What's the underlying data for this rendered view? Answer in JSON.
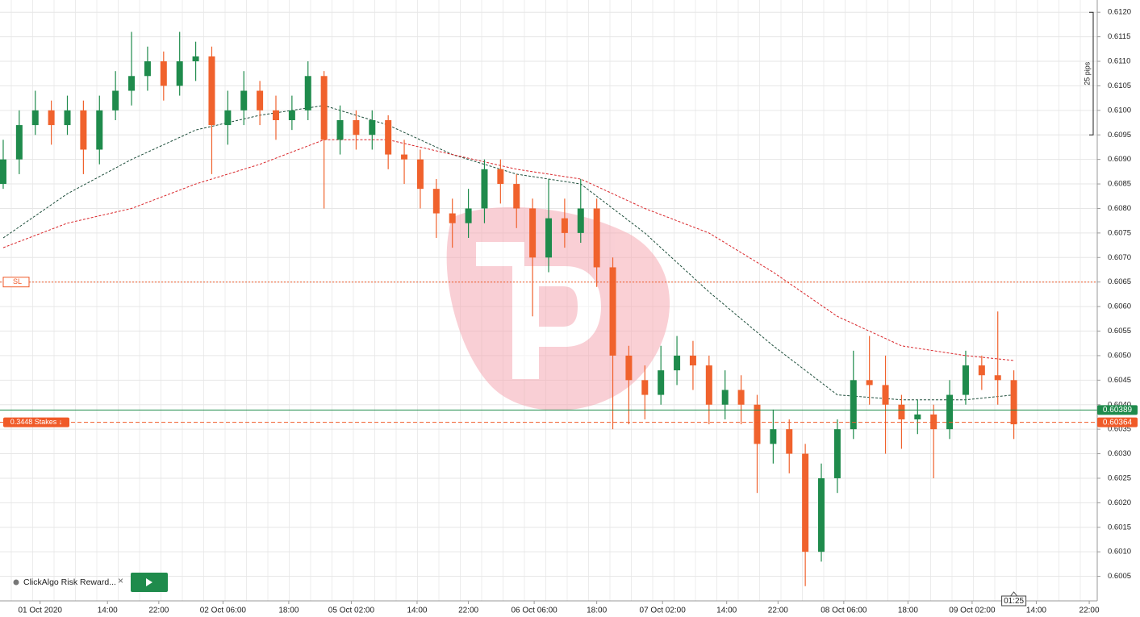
{
  "chart_data": {
    "type": "candlestick",
    "up_color": "#1f8b4c",
    "down_color": "#f0622d",
    "open": [
      0.6085,
      0.609,
      0.6097,
      0.61,
      0.6097,
      0.61,
      0.6092,
      0.61,
      0.6104,
      0.6107,
      0.611,
      0.6105,
      0.611,
      0.6111,
      0.6097,
      0.61,
      0.6104,
      0.61,
      0.6098,
      0.61,
      0.6107,
      0.6094,
      0.6098,
      0.6095,
      0.6098,
      0.6091,
      0.609,
      0.6084,
      0.6079,
      0.6077,
      0.608,
      0.6088,
      0.6085,
      0.608,
      0.607,
      0.6078,
      0.6075,
      0.608,
      0.6068,
      0.605,
      0.6045,
      0.6042,
      0.6047,
      0.605,
      0.6048,
      0.604,
      0.6043,
      0.604,
      0.6032,
      0.6035,
      0.603,
      0.601,
      0.6025,
      0.6035,
      0.6045,
      0.6044,
      0.604,
      0.6037,
      0.6038,
      0.6035,
      0.6042,
      0.6048,
      0.6046,
      0.6045
    ],
    "high": [
      0.6094,
      0.61,
      0.6104,
      0.6102,
      0.6103,
      0.6102,
      0.6103,
      0.6108,
      0.6116,
      0.6113,
      0.6112,
      0.6116,
      0.6114,
      0.6113,
      0.6104,
      0.6108,
      0.6106,
      0.6103,
      0.6103,
      0.611,
      0.6108,
      0.6101,
      0.61,
      0.61,
      0.6099,
      0.6094,
      0.6092,
      0.6086,
      0.6082,
      0.6084,
      0.609,
      0.609,
      0.6087,
      0.6082,
      0.6086,
      0.6082,
      0.6086,
      0.6082,
      0.607,
      0.6052,
      0.6048,
      0.6052,
      0.6054,
      0.6053,
      0.605,
      0.6047,
      0.6046,
      0.6042,
      0.6039,
      0.6037,
      0.6032,
      0.6028,
      0.6037,
      0.6051,
      0.6054,
      0.605,
      0.6042,
      0.6041,
      0.604,
      0.6045,
      0.6051,
      0.605,
      0.6059,
      0.6047
    ],
    "low": [
      0.6084,
      0.6087,
      0.6095,
      0.6093,
      0.6095,
      0.6087,
      0.6089,
      0.6098,
      0.6101,
      0.6104,
      0.6102,
      0.6103,
      0.6106,
      0.6087,
      0.6093,
      0.6097,
      0.6097,
      0.6094,
      0.6096,
      0.6098,
      0.608,
      0.6091,
      0.6092,
      0.6092,
      0.6088,
      0.6085,
      0.608,
      0.6074,
      0.6072,
      0.6074,
      0.6077,
      0.6081,
      0.6076,
      0.6058,
      0.6067,
      0.6072,
      0.6073,
      0.6064,
      0.6035,
      0.6036,
      0.6037,
      0.604,
      0.6044,
      0.6043,
      0.6036,
      0.6037,
      0.6036,
      0.6022,
      0.6028,
      0.6026,
      0.6003,
      0.6008,
      0.6022,
      0.6033,
      0.604,
      0.603,
      0.6031,
      0.6034,
      0.6025,
      0.6033,
      0.604,
      0.6043,
      0.604,
      0.6033
    ],
    "close": [
      0.609,
      0.6097,
      0.61,
      0.6097,
      0.61,
      0.6092,
      0.61,
      0.6104,
      0.6107,
      0.611,
      0.6105,
      0.611,
      0.6111,
      0.6097,
      0.61,
      0.6104,
      0.61,
      0.6098,
      0.61,
      0.6107,
      0.6094,
      0.6098,
      0.6095,
      0.6098,
      0.6091,
      0.609,
      0.6084,
      0.6079,
      0.6077,
      0.608,
      0.6088,
      0.6085,
      0.608,
      0.607,
      0.6078,
      0.6075,
      0.608,
      0.6068,
      0.605,
      0.6045,
      0.6042,
      0.6047,
      0.605,
      0.6048,
      0.604,
      0.6043,
      0.604,
      0.6032,
      0.6035,
      0.603,
      0.601,
      0.6025,
      0.6035,
      0.6045,
      0.6044,
      0.604,
      0.6037,
      0.6038,
      0.6035,
      0.6042,
      0.6048,
      0.6046,
      0.6045,
      0.6036
    ],
    "moving_averages": [
      {
        "color": "#1d4d3a",
        "x": [
          0,
          4,
          8,
          12,
          16,
          20,
          24,
          28,
          32,
          36,
          40,
          44,
          48,
          52,
          56,
          60,
          63
        ],
        "values": [
          0.6074,
          0.6083,
          0.609,
          0.6096,
          0.6099,
          0.6101,
          0.6097,
          0.6091,
          0.6087,
          0.6085,
          0.6075,
          0.6063,
          0.6052,
          0.6042,
          0.6041,
          0.6041,
          0.6042
        ]
      },
      {
        "color": "#d9262a",
        "x": [
          0,
          4,
          8,
          12,
          16,
          20,
          24,
          28,
          32,
          36,
          40,
          44,
          48,
          52,
          56,
          60,
          63
        ],
        "values": [
          0.6072,
          0.6077,
          0.608,
          0.6085,
          0.6089,
          0.6094,
          0.6094,
          0.6091,
          0.6088,
          0.6086,
          0.608,
          0.6075,
          0.6067,
          0.6058,
          0.6052,
          0.605,
          0.6049
        ]
      }
    ],
    "xlim": [
      -0.2,
      68.2
    ],
    "xticks": [
      {
        "value": 2.3,
        "label": "01 Oct 2020"
      },
      {
        "value": 6.5,
        "label": "14:00"
      },
      {
        "value": 9.7,
        "label": "22:00"
      },
      {
        "value": 13.7,
        "label": "02 Oct 06:00"
      },
      {
        "value": 17.8,
        "label": "18:00"
      },
      {
        "value": 21.7,
        "label": "05 Oct 02:00"
      },
      {
        "value": 25.8,
        "label": "14:00"
      },
      {
        "value": 29.0,
        "label": "22:00"
      },
      {
        "value": 33.1,
        "label": "06 Oct 06:00"
      },
      {
        "value": 37.0,
        "label": "18:00"
      },
      {
        "value": 41.1,
        "label": "07 Oct 02:00"
      },
      {
        "value": 45.1,
        "label": "14:00"
      },
      {
        "value": 48.3,
        "label": "22:00"
      },
      {
        "value": 52.4,
        "label": "08 Oct 06:00"
      },
      {
        "value": 56.4,
        "label": "18:00"
      },
      {
        "value": 60.4,
        "label": "09 Oct 02:00"
      },
      {
        "value": 64.4,
        "label": "14:00"
      },
      {
        "value": 67.7,
        "label": "22:00"
      }
    ],
    "ylim": [
      0.6,
      0.61225
    ],
    "yticks": [
      {
        "value": 0.612,
        "label": "0.6120"
      },
      0.6115,
      {
        "value": 0.611,
        "label": "0.6110"
      },
      0.6105,
      {
        "value": 0.61,
        "label": "0.6100"
      },
      0.6095,
      {
        "value": 0.609,
        "label": "0.6090"
      },
      0.6085,
      {
        "value": 0.608,
        "label": "0.6080"
      },
      0.6075,
      {
        "value": 0.607,
        "label": "0.6070"
      },
      0.6065,
      {
        "value": 0.606,
        "label": "0.6060"
      },
      0.6055,
      {
        "value": 0.605,
        "label": "0.6050"
      },
      0.6045,
      {
        "value": 0.604,
        "label": "0.6040"
      },
      0.6035,
      {
        "value": 0.603,
        "label": "0.6030"
      },
      0.6025,
      {
        "value": 0.602,
        "label": "0.6020"
      },
      0.6015,
      {
        "value": 0.601,
        "label": "0.6010"
      },
      0.6005
    ],
    "grid": true,
    "stop_loss": {
      "name": "SL",
      "value": 0.6065,
      "color": "#f05a28"
    },
    "price_lines": [
      {
        "value": 0.60389,
        "color": "#1f8b4c"
      },
      {
        "value": 0.60364,
        "color": "#f05a28",
        "note": "0.3448 Stakes ↓"
      }
    ],
    "pips_bracket": {
      "label": "25 pips",
      "from": 0.612,
      "to": 0.6095
    },
    "countdown": "01:25"
  },
  "widget": {
    "label": "ClickAlgo Risk Reward...",
    "close": "×"
  }
}
